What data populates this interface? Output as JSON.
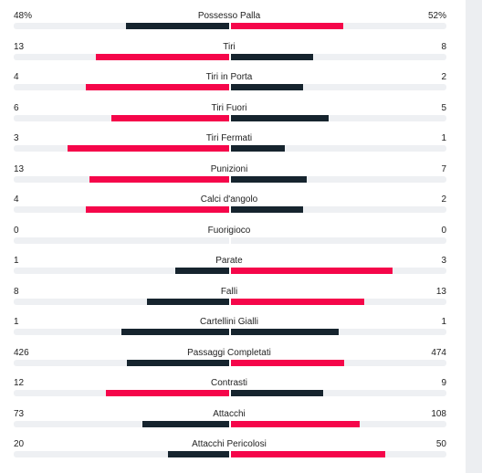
{
  "colors": {
    "leader": "#f5064a",
    "trailer": "#16242e",
    "track": "#eef0f3"
  },
  "stats": [
    {
      "label": "Possesso Palla",
      "home": "48%",
      "away": "52%",
      "home_value": 48,
      "away_value": 52
    },
    {
      "label": "Tiri",
      "home": "13",
      "away": "8",
      "home_value": 13,
      "away_value": 8
    },
    {
      "label": "Tiri in Porta",
      "home": "4",
      "away": "2",
      "home_value": 4,
      "away_value": 2
    },
    {
      "label": "Tiri Fuori",
      "home": "6",
      "away": "5",
      "home_value": 6,
      "away_value": 5
    },
    {
      "label": "Tiri Fermati",
      "home": "3",
      "away": "1",
      "home_value": 3,
      "away_value": 1
    },
    {
      "label": "Punizioni",
      "home": "13",
      "away": "7",
      "home_value": 13,
      "away_value": 7
    },
    {
      "label": "Calci d'angolo",
      "home": "4",
      "away": "2",
      "home_value": 4,
      "away_value": 2
    },
    {
      "label": "Fuorigioco",
      "home": "0",
      "away": "0",
      "home_value": 0,
      "away_value": 0
    },
    {
      "label": "Parate",
      "home": "1",
      "away": "3",
      "home_value": 1,
      "away_value": 3
    },
    {
      "label": "Falli",
      "home": "8",
      "away": "13",
      "home_value": 8,
      "away_value": 13
    },
    {
      "label": "Cartellini Gialli",
      "home": "1",
      "away": "1",
      "home_value": 1,
      "away_value": 1
    },
    {
      "label": "Passaggi Completati",
      "home": "426",
      "away": "474",
      "home_value": 426,
      "away_value": 474
    },
    {
      "label": "Contrasti",
      "home": "12",
      "away": "9",
      "home_value": 12,
      "away_value": 9
    },
    {
      "label": "Attacchi",
      "home": "73",
      "away": "108",
      "home_value": 73,
      "away_value": 108
    },
    {
      "label": "Attacchi Pericolosi",
      "home": "20",
      "away": "50",
      "home_value": 20,
      "away_value": 50
    }
  ]
}
